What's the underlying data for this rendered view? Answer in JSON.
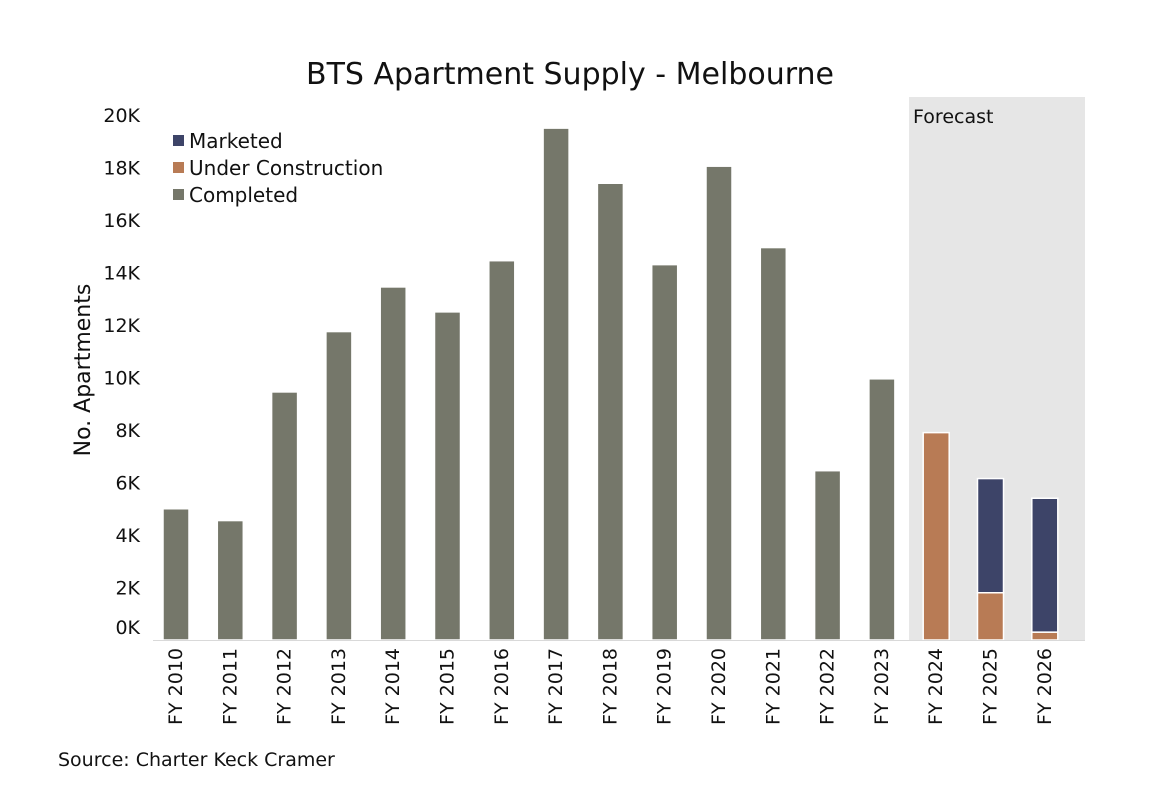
{
  "chart_data": {
    "type": "bar",
    "stacked": true,
    "title": "BTS Apartment Supply - Melbourne",
    "xlabel": "",
    "ylabel": "No. Apartments",
    "categories": [
      "FY 2010",
      "FY 2011",
      "FY 2012",
      "FY 2013",
      "FY 2014",
      "FY 2015",
      "FY 2016",
      "FY 2017",
      "FY 2018",
      "FY 2019",
      "FY 2020",
      "FY 2021",
      "FY 2022",
      "FY 2023",
      "FY 2024",
      "FY 2025",
      "FY 2026"
    ],
    "series": [
      {
        "name": "Completed",
        "color": "#75776a",
        "values": [
          5000,
          4550,
          9450,
          11750,
          13450,
          12500,
          14450,
          19500,
          17400,
          14300,
          18050,
          14950,
          6450,
          9950,
          0,
          0,
          0
        ]
      },
      {
        "name": "Under Construction",
        "color": "#b87b55",
        "values": [
          0,
          0,
          0,
          0,
          0,
          0,
          0,
          0,
          0,
          0,
          0,
          0,
          0,
          0,
          7900,
          1800,
          300
        ]
      },
      {
        "name": "Marketed",
        "color": "#3d4468",
        "values": [
          0,
          0,
          0,
          0,
          0,
          0,
          0,
          0,
          0,
          0,
          0,
          0,
          0,
          0,
          0,
          4350,
          5100
        ]
      }
    ],
    "legend_order": [
      "Marketed",
      "Under Construction",
      "Completed"
    ],
    "legend_position": "top-left",
    "ylim": [
      0,
      20000
    ],
    "yticks": [
      {
        "value": 0,
        "label": "0K"
      },
      {
        "value": 2000,
        "label": "2K"
      },
      {
        "value": 4000,
        "label": "4K"
      },
      {
        "value": 6000,
        "label": "6K"
      },
      {
        "value": 8000,
        "label": "8K"
      },
      {
        "value": 10000,
        "label": "10K"
      },
      {
        "value": 12000,
        "label": "12K"
      },
      {
        "value": 14000,
        "label": "14K"
      },
      {
        "value": 16000,
        "label": "16K"
      },
      {
        "value": 18000,
        "label": "18K"
      },
      {
        "value": 20000,
        "label": "20K"
      }
    ],
    "grid": false,
    "forecast_region": {
      "label": "Forecast",
      "categories": [
        "FY 2024",
        "FY 2025",
        "FY 2026"
      ],
      "color": "#e6e6e6"
    },
    "source_note": "Source: Charter Keck Cramer"
  }
}
